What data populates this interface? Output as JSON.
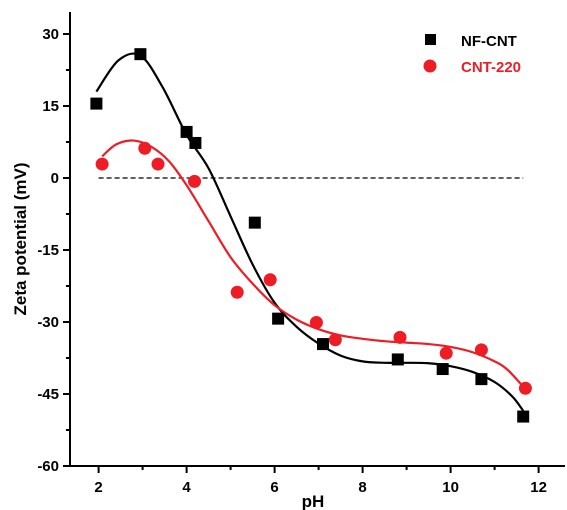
{
  "chart_data": {
    "type": "scatter",
    "xlabel": "pH",
    "ylabel": "Zeta potential (mV)",
    "xlim": [
      1.35,
      12.6
    ],
    "ylim": [
      -60,
      30
    ],
    "xticks": [
      2,
      4,
      6,
      8,
      10,
      12
    ],
    "yticks": [
      30,
      15,
      0,
      -15,
      -30,
      -45,
      -60
    ],
    "xtick_labels": [
      "2",
      "4",
      "6",
      "8",
      "10",
      "12"
    ],
    "ytick_labels": [
      "30",
      "15",
      "0",
      "-15",
      "-30",
      "-45",
      "-60"
    ],
    "reference_line": {
      "y": 0,
      "style": "dashed",
      "x_range": [
        2.0,
        11.65
      ]
    },
    "legend_position": "top-right",
    "series": [
      {
        "name": "NF-CNT",
        "marker": "square",
        "color": "#000000",
        "x": [
          1.95,
          2.95,
          4.0,
          4.2,
          5.55,
          6.08,
          7.1,
          8.8,
          9.82,
          10.7,
          11.65
        ],
        "y": [
          15.5,
          25.8,
          9.6,
          7.3,
          -9.3,
          -29.3,
          -34.6,
          -37.8,
          -39.8,
          -41.9,
          -49.7
        ],
        "curve": {
          "x": [
            1.95,
            2.45,
            2.95,
            3.45,
            4.0,
            4.5,
            5.0,
            5.5,
            6.0,
            6.5,
            7.0,
            7.5,
            8.0,
            8.5,
            9.0,
            9.5,
            10.0,
            10.5,
            11.0,
            11.4,
            11.65
          ],
          "y": [
            18,
            24.5,
            25.5,
            19,
            9,
            2,
            -8,
            -18,
            -26,
            -31,
            -34.5,
            -37,
            -38.2,
            -38.5,
            -38.5,
            -38.6,
            -39.2,
            -40.4,
            -42.5,
            -45.5,
            -48.5
          ]
        }
      },
      {
        "name": "CNT-220",
        "marker": "circle",
        "color": "#ee1c25",
        "x": [
          2.08,
          3.05,
          3.35,
          4.18,
          5.15,
          5.9,
          6.95,
          7.38,
          8.85,
          9.9,
          10.7,
          11.7
        ],
        "y": [
          2.9,
          6.2,
          2.9,
          -0.7,
          -23.8,
          -21.2,
          -30.1,
          -33.7,
          -33.2,
          -36.5,
          -35.8,
          -43.8
        ],
        "curve": {
          "x": [
            2.08,
            2.4,
            2.8,
            3.2,
            3.6,
            4.0,
            4.5,
            5.0,
            5.5,
            6.0,
            6.5,
            7.0,
            7.5,
            8.0,
            8.5,
            9.0,
            9.5,
            10.0,
            10.5,
            11.0,
            11.3,
            11.7
          ],
          "y": [
            4.5,
            7,
            7.8,
            6.5,
            3.5,
            -1.5,
            -9,
            -16.5,
            -22,
            -26.5,
            -29.5,
            -31.5,
            -32.8,
            -33.5,
            -34,
            -34.3,
            -34.6,
            -35.2,
            -36.3,
            -38.2,
            -40,
            -44
          ]
        }
      }
    ]
  }
}
